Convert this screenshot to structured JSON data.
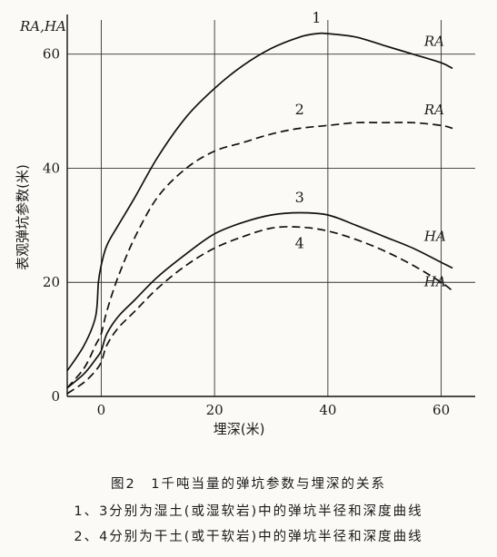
{
  "chart_data": {
    "type": "line",
    "title": "图2　1千吨当量的弹坑参数与埋深的关系",
    "notes": [
      "1、3分别为湿土(或湿软岩)中的弹坑半径和深度曲线",
      "2、4分别为干土(或干软岩)中的弹坑半径和深度曲线"
    ],
    "xlabel": "埋深(米)",
    "ylabel": "表观弹坑参数(米)",
    "corner_label": "RA,HA",
    "xlim": [
      -6,
      66
    ],
    "ylim": [
      0,
      66
    ],
    "xticks": [
      0,
      20,
      40,
      60
    ],
    "yticks": [
      0,
      20,
      40,
      60
    ],
    "grid": true,
    "series": [
      {
        "name": "1",
        "line_label": "RA",
        "style": "solid",
        "points": [
          [
            -6,
            4.5
          ],
          [
            -3,
            9
          ],
          [
            -1,
            14
          ],
          [
            -0.5,
            20
          ],
          [
            0,
            23
          ],
          [
            1,
            26.5
          ],
          [
            3,
            30
          ],
          [
            6,
            35
          ],
          [
            10,
            42
          ],
          [
            15,
            49
          ],
          [
            20,
            54
          ],
          [
            25,
            58
          ],
          [
            30,
            61
          ],
          [
            35,
            63
          ],
          [
            38,
            63.6
          ],
          [
            40,
            63.6
          ],
          [
            45,
            63
          ],
          [
            50,
            61.5
          ],
          [
            55,
            60
          ],
          [
            60,
            58.5
          ],
          [
            62,
            57.5
          ]
        ]
      },
      {
        "name": "2",
        "line_label": "RA",
        "style": "dashed",
        "points": [
          [
            -6,
            1.5
          ],
          [
            -3,
            5
          ],
          [
            -1,
            9
          ],
          [
            0,
            11
          ],
          [
            1,
            15
          ],
          [
            3,
            21
          ],
          [
            6,
            28
          ],
          [
            10,
            35
          ],
          [
            15,
            40
          ],
          [
            20,
            43
          ],
          [
            25,
            44.5
          ],
          [
            30,
            46
          ],
          [
            35,
            47
          ],
          [
            40,
            47.5
          ],
          [
            45,
            48
          ],
          [
            50,
            48
          ],
          [
            55,
            48
          ],
          [
            60,
            47.5
          ],
          [
            62,
            47
          ]
        ]
      },
      {
        "name": "3",
        "line_label": "HA",
        "style": "solid",
        "points": [
          [
            -6,
            1.5
          ],
          [
            -3,
            4
          ],
          [
            -1,
            6.5
          ],
          [
            0,
            8
          ],
          [
            1,
            11
          ],
          [
            3,
            14
          ],
          [
            6,
            17
          ],
          [
            10,
            21
          ],
          [
            15,
            25
          ],
          [
            20,
            28.5
          ],
          [
            25,
            30.5
          ],
          [
            30,
            31.8
          ],
          [
            35,
            32.2
          ],
          [
            40,
            31.8
          ],
          [
            45,
            30
          ],
          [
            50,
            28
          ],
          [
            55,
            26
          ],
          [
            60,
            23.5
          ],
          [
            62,
            22.5
          ]
        ]
      },
      {
        "name": "4",
        "line_label": "HA",
        "style": "dashed",
        "points": [
          [
            -6,
            0.5
          ],
          [
            -3,
            2.5
          ],
          [
            -1,
            4.5
          ],
          [
            0,
            6
          ],
          [
            1,
            9
          ],
          [
            3,
            12
          ],
          [
            6,
            15
          ],
          [
            10,
            19
          ],
          [
            15,
            23
          ],
          [
            20,
            26
          ],
          [
            25,
            28
          ],
          [
            30,
            29.5
          ],
          [
            35,
            29.7
          ],
          [
            40,
            29
          ],
          [
            45,
            27.5
          ],
          [
            50,
            25.5
          ],
          [
            55,
            23
          ],
          [
            60,
            20
          ],
          [
            62,
            18.5
          ]
        ]
      }
    ]
  }
}
